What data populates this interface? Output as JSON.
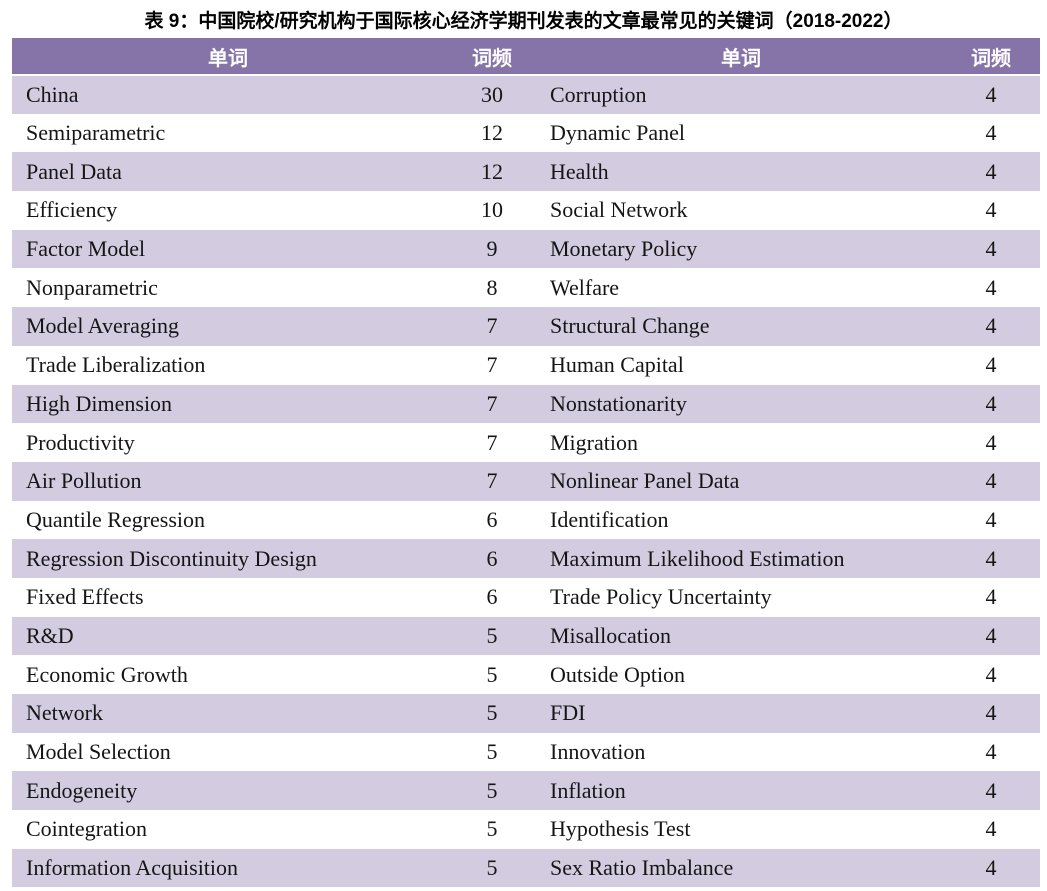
{
  "title": "表 9：中国院校/研究机构于国际核心经济学期刊发表的文章最常见的关键词（2018-2022）",
  "colors": {
    "header_bg": "#8674A8",
    "stripe_row_bg": "#D3CCE0",
    "plain_row_bg": "#FFFFFF",
    "header_text": "#FFFFFF",
    "body_text": "#151515"
  },
  "table": {
    "headers": [
      "单词",
      "词频",
      "单词",
      "词频"
    ],
    "rows": [
      {
        "word1": "China",
        "freq1": "30",
        "word2": "Corruption",
        "freq2": "4"
      },
      {
        "word1": "Semiparametric",
        "freq1": "12",
        "word2": "Dynamic Panel",
        "freq2": "4"
      },
      {
        "word1": "Panel Data",
        "freq1": "12",
        "word2": "Health",
        "freq2": "4"
      },
      {
        "word1": "Efficiency",
        "freq1": "10",
        "word2": "Social Network",
        "freq2": "4"
      },
      {
        "word1": "Factor Model",
        "freq1": "9",
        "word2": "Monetary Policy",
        "freq2": "4"
      },
      {
        "word1": "Nonparametric",
        "freq1": "8",
        "word2": "Welfare",
        "freq2": "4"
      },
      {
        "word1": "Model Averaging",
        "freq1": "7",
        "word2": "Structural Change",
        "freq2": "4"
      },
      {
        "word1": "Trade Liberalization",
        "freq1": "7",
        "word2": "Human Capital",
        "freq2": "4"
      },
      {
        "word1": "High Dimension",
        "freq1": "7",
        "word2": "Nonstationarity",
        "freq2": "4"
      },
      {
        "word1": "Productivity",
        "freq1": "7",
        "word2": "Migration",
        "freq2": "4"
      },
      {
        "word1": "Air Pollution",
        "freq1": "7",
        "word2": "Nonlinear Panel Data",
        "freq2": "4"
      },
      {
        "word1": "Quantile Regression",
        "freq1": "6",
        "word2": "Identification",
        "freq2": "4"
      },
      {
        "word1": "Regression Discontinuity Design",
        "freq1": "6",
        "word2": "Maximum Likelihood Estimation",
        "freq2": "4"
      },
      {
        "word1": "Fixed Effects",
        "freq1": "6",
        "word2": "Trade Policy Uncertainty",
        "freq2": "4"
      },
      {
        "word1": "R&D",
        "freq1": "5",
        "word2": "Misallocation",
        "freq2": "4"
      },
      {
        "word1": "Economic Growth",
        "freq1": "5",
        "word2": "Outside Option",
        "freq2": "4"
      },
      {
        "word1": "Network",
        "freq1": "5",
        "word2": "FDI",
        "freq2": "4"
      },
      {
        "word1": "Model Selection",
        "freq1": "5",
        "word2": "Innovation",
        "freq2": "4"
      },
      {
        "word1": "Endogeneity",
        "freq1": "5",
        "word2": "Inflation",
        "freq2": "4"
      },
      {
        "word1": "Cointegration",
        "freq1": "5",
        "word2": "Hypothesis Test",
        "freq2": "4"
      },
      {
        "word1": "Information Acquisition",
        "freq1": "5",
        "word2": "Sex Ratio Imbalance",
        "freq2": "4"
      }
    ]
  }
}
